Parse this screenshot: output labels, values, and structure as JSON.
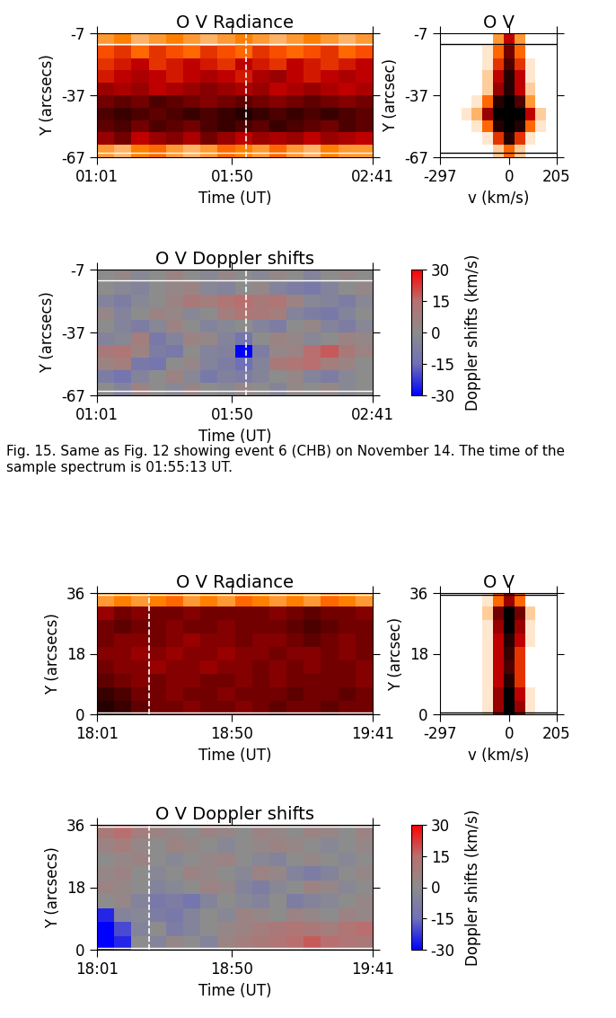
{
  "chart_data": [
    {
      "type": "heatmap",
      "kind": "radiance",
      "title": "O V Radiance",
      "xlabel": "Time (UT)",
      "ylabel": "Y (arcsecs)",
      "xlim": [
        61,
        161
      ],
      "xticks": [
        {
          "value": 61,
          "label": "01:01"
        },
        {
          "value": 110,
          "label": "01:50"
        },
        {
          "value": 161,
          "label": "02:41"
        }
      ],
      "ylim": [
        -67,
        -7
      ],
      "yticks": [
        -7,
        -37,
        -67
      ],
      "cell_range": [
        0,
        1
      ],
      "marker_time": 115.2,
      "marker_y": [
        -12,
        -65
      ],
      "cells": [
        [
          0.2,
          0.15,
          0.25,
          0.3,
          0.2,
          0.15,
          0.2,
          0.3,
          0.25,
          0.2,
          0.3,
          0.2,
          0.15,
          0.25,
          0.2,
          0.2
        ],
        [
          0.6,
          0.7,
          0.5,
          0.6,
          0.65,
          0.55,
          0.7,
          0.6,
          0.5,
          0.6,
          0.55,
          0.6,
          0.5,
          0.6,
          0.55,
          0.5
        ],
        [
          0.75,
          0.8,
          0.7,
          0.8,
          0.75,
          0.7,
          0.8,
          0.85,
          0.8,
          0.75,
          0.85,
          0.8,
          0.75,
          0.7,
          0.8,
          0.75
        ],
        [
          0.8,
          0.85,
          0.8,
          0.75,
          0.8,
          0.85,
          0.8,
          0.85,
          0.9,
          0.85,
          0.8,
          0.85,
          0.8,
          0.85,
          0.8,
          0.75
        ],
        [
          0.7,
          0.75,
          0.7,
          0.8,
          0.75,
          0.7,
          0.65,
          0.7,
          0.75,
          0.7,
          0.65,
          0.7,
          0.75,
          0.7,
          0.65,
          0.7
        ],
        [
          0.6,
          0.55,
          0.6,
          0.5,
          0.55,
          0.6,
          0.65,
          0.6,
          0.55,
          0.6,
          0.5,
          0.55,
          0.6,
          0.55,
          0.5,
          0.55
        ],
        [
          0.45,
          0.5,
          0.55,
          0.5,
          0.45,
          0.5,
          0.55,
          0.5,
          0.45,
          0.55,
          0.6,
          0.5,
          0.45,
          0.5,
          0.55,
          0.5
        ],
        [
          0.4,
          0.45,
          0.5,
          0.4,
          0.45,
          0.5,
          0.45,
          0.4,
          0.5,
          0.45,
          0.4,
          0.5,
          0.45,
          0.4,
          0.45,
          0.5
        ],
        [
          0.35,
          0.4,
          0.3,
          0.4,
          0.35,
          0.3,
          0.4,
          0.35,
          0.3,
          0.4,
          0.35,
          0.3,
          0.35,
          0.4,
          0.3,
          0.35
        ],
        [
          0.2,
          0.25,
          0.15,
          0.2,
          0.25,
          0.2,
          0.15,
          0.2,
          0.25,
          0.2,
          0.15,
          0.2,
          0.25,
          0.2,
          0.15,
          0.2
        ]
      ]
    },
    {
      "type": "heatmap",
      "kind": "spectrum",
      "title": "O V",
      "xlabel": "v (km/s)",
      "ylabel": "Y (arcsec)",
      "xlim": [
        -297,
        205
      ],
      "xticks": [
        -297,
        0,
        205
      ],
      "ylim": [
        -67,
        -7
      ],
      "yticks": [
        -7,
        -37,
        -67
      ],
      "cell_range": [
        0,
        1
      ],
      "marker_y": [
        -12,
        -65
      ],
      "cells": [
        [
          0,
          0,
          0,
          0,
          0,
          0.1,
          0.3,
          0.1,
          0,
          0,
          0
        ],
        [
          0,
          0,
          0,
          0,
          0.05,
          0.4,
          0.9,
          0.4,
          0.05,
          0,
          0
        ],
        [
          0,
          0,
          0,
          0.05,
          0.3,
          0.9,
          1,
          0.9,
          0.3,
          0.05,
          0
        ],
        [
          0,
          0,
          0.05,
          0.15,
          0.6,
          1,
          1,
          1,
          0.5,
          0.1,
          0
        ],
        [
          0,
          0,
          0,
          0.05,
          0.3,
          0.9,
          1,
          0.8,
          0.2,
          0,
          0
        ],
        [
          0,
          0,
          0,
          0,
          0.1,
          0.6,
          0.9,
          0.5,
          0.1,
          0,
          0
        ],
        [
          0,
          0,
          0,
          0,
          0.1,
          0.5,
          0.9,
          0.5,
          0.05,
          0,
          0
        ],
        [
          0,
          0,
          0,
          0,
          0.05,
          0.4,
          0.8,
          0.4,
          0.05,
          0,
          0
        ],
        [
          0,
          0,
          0,
          0,
          0.05,
          0.3,
          0.7,
          0.3,
          0,
          0,
          0
        ],
        [
          0,
          0,
          0,
          0,
          0,
          0.2,
          0.5,
          0.2,
          0,
          0,
          0
        ]
      ]
    },
    {
      "type": "heatmap",
      "kind": "doppler",
      "title": "O V Doppler shifts",
      "xlabel": "Time (UT)",
      "ylabel": "Y (arcsecs)",
      "xlim": [
        61,
        161
      ],
      "xticks": [
        {
          "value": 61,
          "label": "01:01"
        },
        {
          "value": 110,
          "label": "01:50"
        },
        {
          "value": 161,
          "label": "02:41"
        }
      ],
      "ylim": [
        -67,
        -7
      ],
      "yticks": [
        -7,
        -37,
        -67
      ],
      "marker_time": 115.2,
      "marker_y": [
        -12,
        -65
      ],
      "colorbar_label": "Doppler shifts (km/s)",
      "colorbar_range": [
        -30,
        30
      ],
      "colorbar_ticks": [
        30,
        15,
        0,
        -15,
        -30
      ],
      "cells": [
        [
          0,
          -5,
          5,
          0,
          -3,
          4,
          0,
          -2,
          3,
          0,
          -4,
          2,
          0,
          3,
          -2,
          0
        ],
        [
          -8,
          -12,
          -5,
          0,
          5,
          -3,
          -10,
          -6,
          -8,
          -4,
          0,
          3,
          -5,
          -8,
          -3,
          0
        ],
        [
          5,
          8,
          -10,
          -12,
          0,
          3,
          -5,
          -8,
          -15,
          -5,
          10,
          12,
          15,
          8,
          5,
          0
        ],
        [
          10,
          12,
          5,
          -8,
          -10,
          0,
          -5,
          -6,
          -30,
          -8,
          3,
          5,
          15,
          18,
          10,
          5
        ],
        [
          -5,
          -3,
          8,
          -10,
          -5,
          5,
          3,
          -5,
          -12,
          0,
          5,
          3,
          -3,
          0,
          5,
          3
        ],
        [
          0,
          -5,
          -8,
          -3,
          5,
          0,
          -5,
          -3,
          0,
          -5,
          -8,
          0,
          3,
          -5,
          -8,
          -3
        ],
        [
          3,
          -5,
          0,
          5,
          3,
          -3,
          0,
          8,
          12,
          10,
          8,
          -5,
          -8,
          -10,
          -5,
          0
        ],
        [
          -5,
          -8,
          -3,
          0,
          5,
          10,
          8,
          12,
          15,
          10,
          12,
          5,
          -3,
          -5,
          -8,
          -3
        ],
        [
          0,
          -3,
          -5,
          0,
          3,
          5,
          -3,
          -5,
          0,
          3,
          -5,
          -8,
          -10,
          -5,
          0,
          3
        ],
        [
          0,
          3,
          -3,
          0,
          5,
          0,
          -3,
          3,
          0,
          -3,
          3,
          0,
          -5,
          0,
          3,
          0
        ]
      ]
    },
    {
      "type": "heatmap",
      "kind": "radiance",
      "title": "O V Radiance",
      "xlabel": "Time (UT)",
      "ylabel": "Y (arcsecs)",
      "xlim": [
        1081,
        1181
      ],
      "xticks": [
        {
          "value": 1081,
          "label": "18:01"
        },
        {
          "value": 1130,
          "label": "18:50"
        },
        {
          "value": 1181,
          "label": "19:41"
        }
      ],
      "ylim": [
        0,
        36
      ],
      "yticks": [
        0,
        18,
        36
      ],
      "cell_range": [
        0,
        1
      ],
      "marker_time": 1100,
      "marker_y": [
        0.5,
        35.5
      ],
      "cells": [
        [
          0.9,
          0.85,
          0.75,
          0.7,
          0.7,
          0.65,
          0.7,
          0.7,
          0.65,
          0.7,
          0.75,
          0.7,
          0.7,
          0.75,
          0.7,
          0.7
        ],
        [
          0.85,
          0.8,
          0.7,
          0.7,
          0.65,
          0.7,
          0.7,
          0.65,
          0.7,
          0.7,
          0.7,
          0.75,
          0.7,
          0.7,
          0.75,
          0.7
        ],
        [
          0.75,
          0.7,
          0.65,
          0.7,
          0.65,
          0.65,
          0.7,
          0.7,
          0.65,
          0.7,
          0.65,
          0.7,
          0.7,
          0.7,
          0.7,
          0.65
        ],
        [
          0.7,
          0.65,
          0.65,
          0.6,
          0.65,
          0.65,
          0.6,
          0.65,
          0.65,
          0.7,
          0.65,
          0.7,
          0.65,
          0.7,
          0.7,
          0.65
        ],
        [
          0.65,
          0.65,
          0.6,
          0.65,
          0.6,
          0.65,
          0.65,
          0.6,
          0.65,
          0.65,
          0.7,
          0.65,
          0.65,
          0.7,
          0.65,
          0.7
        ],
        [
          0.7,
          0.65,
          0.65,
          0.7,
          0.65,
          0.6,
          0.65,
          0.65,
          0.7,
          0.65,
          0.65,
          0.7,
          0.75,
          0.7,
          0.65,
          0.7
        ],
        [
          0.7,
          0.75,
          0.7,
          0.7,
          0.65,
          0.7,
          0.7,
          0.65,
          0.7,
          0.7,
          0.7,
          0.75,
          0.8,
          0.75,
          0.7,
          0.7
        ],
        [
          0.6,
          0.7,
          0.65,
          0.7,
          0.7,
          0.65,
          0.7,
          0.7,
          0.7,
          0.7,
          0.65,
          0.7,
          0.75,
          0.7,
          0.7,
          0.65
        ],
        [
          0.2,
          0.25,
          0.2,
          0.25,
          0.3,
          0.2,
          0.25,
          0.2,
          0.3,
          0.25,
          0.2,
          0.25,
          0.2,
          0.3,
          0.25,
          0.2
        ]
      ]
    },
    {
      "type": "heatmap",
      "kind": "spectrum",
      "title": "O V",
      "xlabel": "v (km/s)",
      "ylabel": "Y (arcsec)",
      "xlim": [
        -297,
        205
      ],
      "xticks": [
        -297,
        0,
        205
      ],
      "ylim": [
        0,
        36
      ],
      "yticks": [
        0,
        18,
        36
      ],
      "cell_range": [
        0,
        1
      ],
      "marker_y": [
        0.5,
        35.5
      ],
      "cells": [
        [
          0,
          0,
          0,
          0,
          0.05,
          0.6,
          1,
          0.6,
          0.05,
          0,
          0
        ],
        [
          0,
          0,
          0,
          0,
          0.05,
          0.6,
          1,
          0.5,
          0.05,
          0,
          0
        ],
        [
          0,
          0,
          0,
          0,
          0.05,
          0.5,
          0.9,
          0.4,
          0,
          0,
          0
        ],
        [
          0,
          0,
          0,
          0,
          0.05,
          0.5,
          0.8,
          0.4,
          0,
          0,
          0
        ],
        [
          0,
          0,
          0,
          0,
          0.05,
          0.5,
          0.85,
          0.4,
          0,
          0,
          0
        ],
        [
          0,
          0,
          0,
          0,
          0.05,
          0.5,
          0.9,
          0.5,
          0.05,
          0,
          0
        ],
        [
          0,
          0,
          0,
          0,
          0.05,
          0.6,
          1,
          0.6,
          0.05,
          0,
          0
        ],
        [
          0,
          0,
          0,
          0,
          0.1,
          0.7,
          1,
          0.7,
          0.1,
          0,
          0
        ],
        [
          0,
          0,
          0,
          0,
          0.05,
          0.3,
          0.6,
          0.3,
          0,
          0,
          0
        ]
      ]
    },
    {
      "type": "heatmap",
      "kind": "doppler",
      "title": "O V Doppler shifts",
      "xlabel": "Time (UT)",
      "ylabel": "Y (arcsecs)",
      "xlim": [
        1081,
        1181
      ],
      "xticks": [
        {
          "value": 1081,
          "label": "18:01"
        },
        {
          "value": 1130,
          "label": "18:50"
        },
        {
          "value": 1181,
          "label": "19:41"
        }
      ],
      "ylim": [
        0,
        36
      ],
      "yticks": [
        0,
        18,
        36
      ],
      "marker_time": 1100,
      "marker_y": [
        0.5,
        35.5
      ],
      "colorbar_label": "Doppler shifts (km/s)",
      "colorbar_range": [
        -30,
        30
      ],
      "colorbar_ticks": [
        30,
        15,
        0,
        -15,
        -30
      ],
      "cells": [
        [
          -30,
          -25,
          0,
          -5,
          3,
          0,
          -5,
          5,
          8,
          10,
          12,
          15,
          18,
          15,
          12,
          10
        ],
        [
          -30,
          -20,
          -5,
          0,
          -8,
          -5,
          0,
          3,
          5,
          8,
          10,
          12,
          10,
          8,
          12,
          15
        ],
        [
          -25,
          -5,
          -3,
          -8,
          -10,
          -5,
          0,
          -3,
          5,
          3,
          0,
          5,
          3,
          0,
          5,
          3
        ],
        [
          0,
          3,
          -5,
          -10,
          -8,
          -12,
          -5,
          0,
          -3,
          -5,
          0,
          -8,
          -5,
          -3,
          0,
          3
        ],
        [
          5,
          3,
          0,
          -5,
          -3,
          0,
          5,
          3,
          -5,
          -8,
          -3,
          0,
          5,
          3,
          -3,
          0
        ],
        [
          3,
          5,
          0,
          -3,
          0,
          5,
          3,
          0,
          -3,
          5,
          3,
          -5,
          -8,
          -5,
          0,
          3
        ],
        [
          0,
          3,
          5,
          0,
          -3,
          0,
          3,
          5,
          0,
          -3,
          -5,
          0,
          3,
          0,
          -3,
          0
        ],
        [
          5,
          8,
          3,
          0,
          5,
          3,
          0,
          -3,
          0,
          3,
          5,
          3,
          0,
          -3,
          0,
          3
        ],
        [
          10,
          15,
          8,
          5,
          3,
          0,
          5,
          3,
          0,
          5,
          3,
          0,
          5,
          3,
          0,
          5
        ]
      ]
    }
  ],
  "caption": "Fig. 15. Same as Fig. 12 showing event 6 (CHB) on November 14. The time of the sample spectrum is 01:55:13 UT."
}
